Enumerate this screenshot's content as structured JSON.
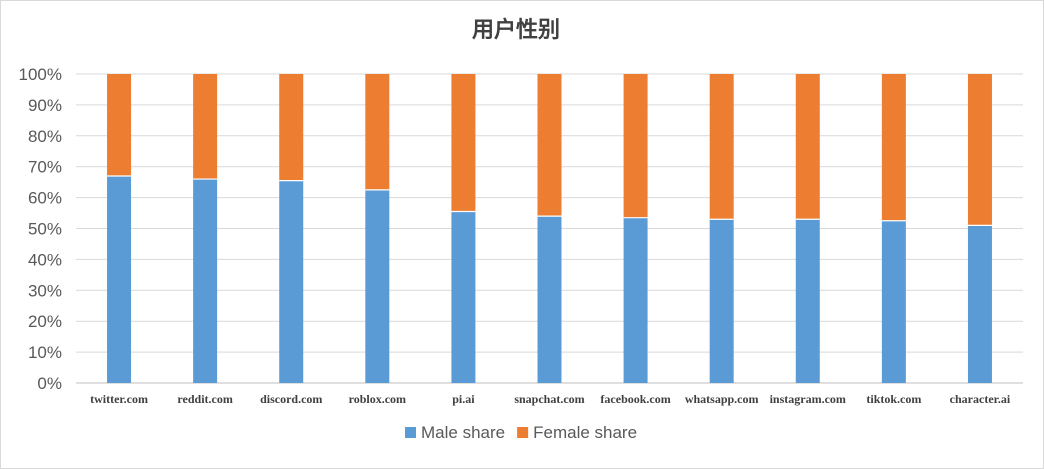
{
  "chart_data": {
    "type": "bar",
    "stacked": true,
    "title": "用户性别",
    "xlabel": "",
    "ylabel": "",
    "ylim": [
      0,
      1
    ],
    "ytick_labels": [
      "0%",
      "10%",
      "20%",
      "30%",
      "40%",
      "50%",
      "60%",
      "70%",
      "80%",
      "90%",
      "100%"
    ],
    "grid": true,
    "legend_position": "bottom",
    "categories": [
      "twitter.com",
      "reddit.com",
      "discord.com",
      "roblox.com",
      "pi.ai",
      "snapchat.com",
      "facebook.com",
      "whatsapp.com",
      "instagram.com",
      "tiktok.com",
      "character.ai"
    ],
    "series": [
      {
        "name": "Male share",
        "color": "#5b9bd5",
        "values": [
          0.67,
          0.66,
          0.655,
          0.625,
          0.555,
          0.54,
          0.535,
          0.53,
          0.53,
          0.525,
          0.51
        ]
      },
      {
        "name": "Female share",
        "color": "#ed7d31",
        "values": [
          0.33,
          0.34,
          0.345,
          0.375,
          0.445,
          0.46,
          0.465,
          0.47,
          0.47,
          0.475,
          0.49
        ]
      }
    ]
  }
}
